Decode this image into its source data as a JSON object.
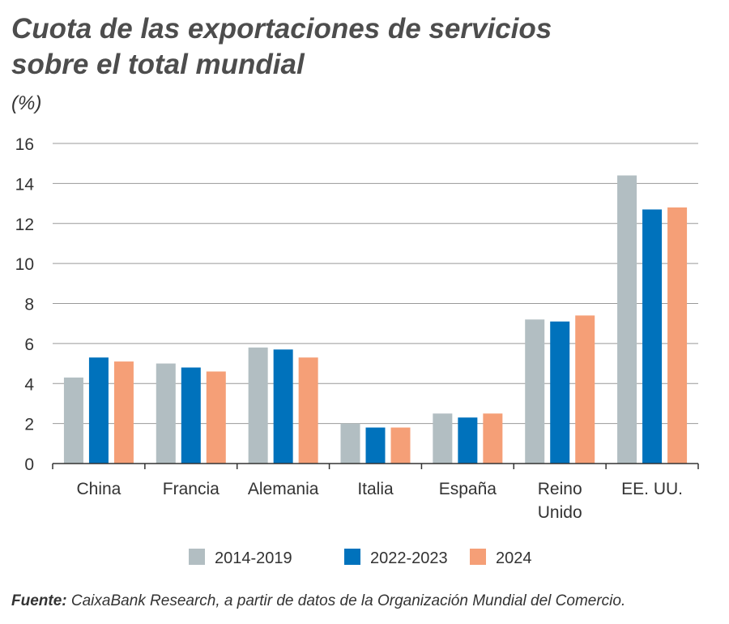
{
  "chart_data": {
    "type": "bar",
    "title": "Cuota de las exportaciones de servicios sobre el total mundial",
    "ylabel": "(%)",
    "xlabel": "",
    "ylim": [
      0,
      16
    ],
    "yticks": [
      "0",
      "2",
      "4",
      "6",
      "8",
      "10",
      "12",
      "14",
      "16"
    ],
    "grid": true,
    "legend": "bottom",
    "categories": [
      "China",
      "Francia",
      "Alemania",
      "Italia",
      "España",
      "Reino Unido",
      "EE. UU."
    ],
    "series": [
      {
        "name": "2014-2019",
        "color": "#b2bec2",
        "values": [
          4.3,
          5.0,
          5.8,
          2.0,
          2.5,
          7.2,
          14.4
        ]
      },
      {
        "name": "2022-2023",
        "color": "#0072bc",
        "values": [
          5.3,
          4.8,
          5.7,
          1.8,
          2.3,
          7.1,
          12.7
        ]
      },
      {
        "name": "2024",
        "color": "#f59f77",
        "values": [
          5.1,
          4.6,
          5.3,
          1.8,
          2.5,
          7.4,
          12.8
        ]
      }
    ]
  },
  "source": {
    "label": "Fuente:",
    "text": " CaixaBank Research, a partir de datos de la Organización Mundial del Comercio."
  }
}
